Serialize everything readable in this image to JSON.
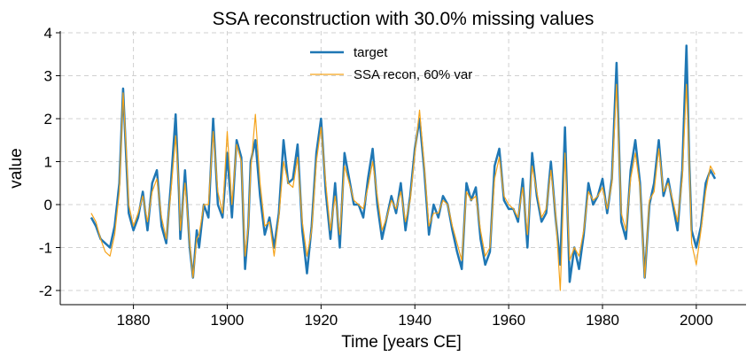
{
  "chart_data": {
    "type": "line",
    "title": "SSA reconstruction with 30.0% missing values",
    "xlabel": "Time [years CE]",
    "ylabel": "value",
    "x": [
      1871,
      1872,
      1873,
      1874,
      1875,
      1876,
      1877,
      1877.8,
      1878.5,
      1879,
      1880,
      1881,
      1882,
      1883,
      1884,
      1885,
      1886,
      1887,
      1888,
      1889,
      1889.7,
      1890,
      1891,
      1892,
      1892.7,
      1893.5,
      1894,
      1895,
      1896,
      1897,
      1898,
      1899,
      1900,
      1901,
      1902,
      1903,
      1903.8,
      1904.5,
      1905,
      1906,
      1907,
      1908,
      1909,
      1910,
      1911,
      1912,
      1913,
      1914,
      1915,
      1916,
      1917,
      1918,
      1919,
      1920,
      1921,
      1922,
      1923,
      1924,
      1925,
      1926,
      1927,
      1928,
      1929,
      1930,
      1931,
      1932,
      1933,
      1934,
      1935,
      1936,
      1937,
      1938,
      1939,
      1940,
      1941,
      1942,
      1943,
      1944,
      1945,
      1946,
      1947,
      1948,
      1949,
      1950,
      1951,
      1952,
      1953,
      1954,
      1955,
      1956,
      1957,
      1958,
      1959,
      1960,
      1961,
      1962,
      1963,
      1964,
      1965,
      1966,
      1967,
      1968,
      1969,
      1970,
      1971,
      1972,
      1973,
      1974,
      1975,
      1976,
      1977,
      1978,
      1979,
      1980,
      1981,
      1982,
      1983,
      1984,
      1985,
      1986,
      1987,
      1988,
      1989,
      1990,
      1991,
      1992,
      1993,
      1994,
      1995,
      1996,
      1997,
      1997.9,
      1998.5,
      1999,
      2000,
      2001,
      2002,
      2003,
      2004
    ],
    "series": [
      {
        "name": "target",
        "color": "#1f77b4",
        "width": 2.5,
        "values": [
          -0.3,
          -0.5,
          -0.8,
          -0.9,
          -1.0,
          -0.5,
          0.5,
          2.7,
          1.0,
          -0.2,
          -0.6,
          -0.3,
          0.3,
          -0.6,
          0.5,
          0.8,
          -0.5,
          -0.9,
          0.5,
          2.1,
          0.3,
          -0.8,
          0.8,
          -1.0,
          -1.7,
          -0.6,
          -1.0,
          0.0,
          -0.3,
          2.0,
          0.0,
          -0.3,
          1.2,
          -0.3,
          1.5,
          1.1,
          -1.5,
          -0.5,
          1.0,
          1.5,
          0.2,
          -0.7,
          -0.3,
          -1.0,
          -0.2,
          1.5,
          0.5,
          0.6,
          1.4,
          -0.6,
          -1.6,
          -0.5,
          1.2,
          2.0,
          0.3,
          -0.8,
          0.5,
          -1.0,
          1.2,
          0.6,
          0.0,
          0.0,
          -0.3,
          0.6,
          1.3,
          0.0,
          -0.8,
          -0.3,
          0.2,
          -0.2,
          0.5,
          -0.6,
          0.2,
          1.3,
          2.0,
          0.8,
          -0.7,
          0.0,
          -0.3,
          0.2,
          0.0,
          -0.6,
          -1.1,
          -1.5,
          0.5,
          0.1,
          0.4,
          -0.8,
          -1.4,
          -1.1,
          0.9,
          1.3,
          0.1,
          -0.1,
          -0.1,
          -0.4,
          0.6,
          -1.0,
          1.2,
          0.2,
          -0.4,
          -0.2,
          1.0,
          -0.3,
          -1.4,
          1.8,
          -1.8,
          -1.0,
          -1.5,
          -0.7,
          0.5,
          0.0,
          0.2,
          0.6,
          -0.2,
          0.6,
          3.3,
          -0.4,
          -0.8,
          0.8,
          1.5,
          0.5,
          -1.7,
          0.0,
          0.5,
          1.5,
          0.2,
          0.6,
          0.0,
          -0.6,
          0.8,
          3.7,
          1.0,
          -0.6,
          -1.0,
          -0.5,
          0.5,
          0.8,
          0.6
        ]
      },
      {
        "name": "SSA recon, 60% var",
        "color": "#f5a31a",
        "width": 1.2,
        "values": [
          -0.2,
          -0.4,
          -0.8,
          -1.1,
          -1.2,
          -0.7,
          0.3,
          2.6,
          1.2,
          0.0,
          -0.5,
          -0.2,
          0.2,
          -0.4,
          0.3,
          0.6,
          -0.3,
          -0.8,
          0.3,
          1.6,
          0.4,
          -0.6,
          0.5,
          -0.9,
          -1.7,
          -0.8,
          -0.7,
          0.0,
          0.0,
          1.7,
          0.3,
          -0.2,
          1.7,
          0.0,
          1.4,
          1.0,
          -1.2,
          -0.5,
          0.8,
          2.1,
          0.5,
          -0.5,
          -0.4,
          -1.2,
          -0.3,
          1.0,
          0.5,
          0.4,
          1.1,
          -0.4,
          -1.2,
          -0.6,
          1.0,
          1.8,
          0.5,
          -0.6,
          0.2,
          -0.7,
          0.9,
          0.5,
          0.1,
          0.0,
          -0.1,
          0.4,
          1.0,
          0.2,
          -0.6,
          -0.3,
          0.1,
          -0.1,
          0.3,
          -0.4,
          0.1,
          1.2,
          2.2,
          0.9,
          -0.5,
          -0.2,
          -0.2,
          0.1,
          0.0,
          -0.5,
          -0.9,
          -1.3,
          0.3,
          0.1,
          0.2,
          -0.6,
          -1.2,
          -1.0,
          0.6,
          1.1,
          0.2,
          0.0,
          -0.1,
          -0.3,
          0.4,
          -0.7,
          0.9,
          0.3,
          -0.3,
          -0.1,
          0.8,
          -0.2,
          -2.0,
          1.2,
          -1.3,
          -1.0,
          -1.2,
          -0.6,
          0.3,
          0.1,
          0.2,
          0.4,
          -0.1,
          0.5,
          2.8,
          -0.2,
          -0.6,
          0.6,
          1.2,
          0.4,
          -1.7,
          0.1,
          0.3,
          1.3,
          0.3,
          0.5,
          0.1,
          -0.4,
          0.6,
          2.8,
          1.0,
          -0.9,
          -1.4,
          -0.6,
          0.3,
          0.9,
          0.7
        ]
      }
    ],
    "xlim": [
      1864.4,
      2010.6
    ],
    "xticks": [
      1880,
      1900,
      1920,
      1940,
      1960,
      1980,
      2000
    ],
    "ylim": [
      -2.33,
      4.0
    ],
    "yticks": [
      -2,
      -1,
      0,
      1,
      2,
      3,
      4
    ],
    "grid": true,
    "legend": "upper center"
  }
}
